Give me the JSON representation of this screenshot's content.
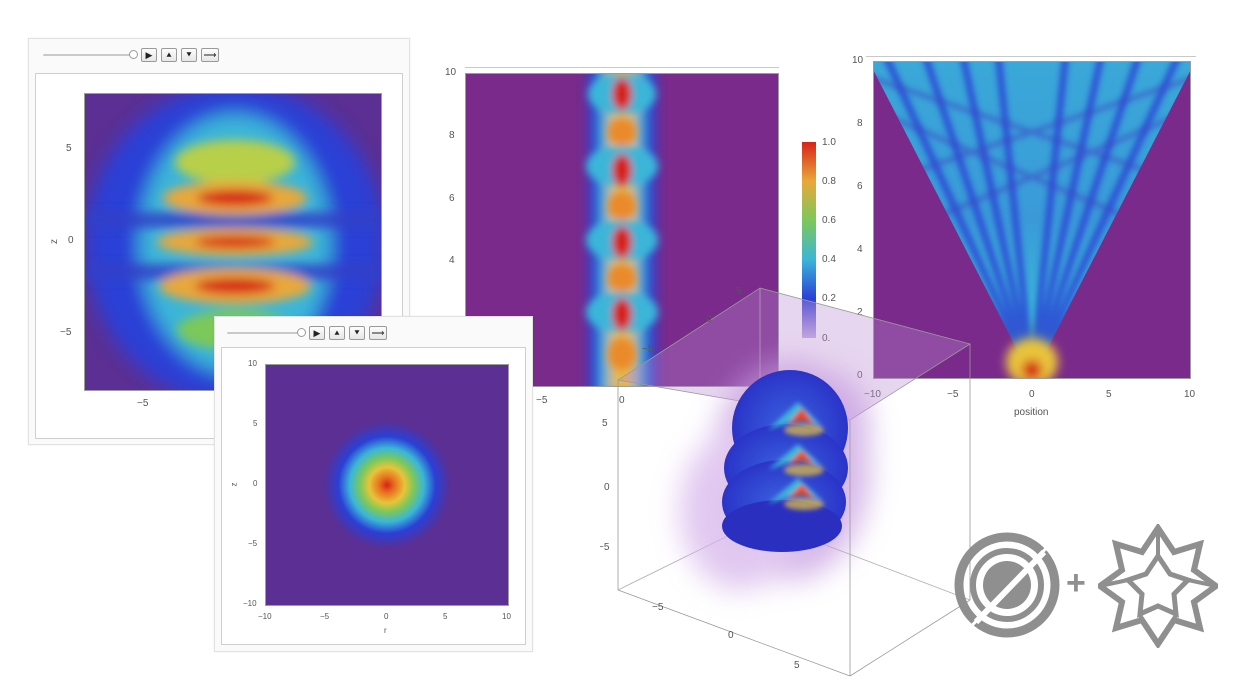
{
  "controls": {
    "play_label": "▶",
    "faster_label": "⯅",
    "slower_label": "⯆",
    "direction_label": "⟶",
    "slider_value": 1.0
  },
  "colors": {
    "purple": "#7a2a8a",
    "blue": "#2b3fd6",
    "cyan": "#3ab6d8",
    "green": "#7cc85a",
    "yellow": "#e8c43a",
    "orange": "#ea7a2a",
    "red": "#d62418",
    "logo_gray": "#8f8f8f"
  },
  "icons": {
    "logo_left": "aperture-lens-icon",
    "plus": "+",
    "logo_right": "wolfram-spikey-icon"
  },
  "chart_data": [
    {
      "type": "heatmap",
      "ylabel": "z",
      "x_ticks": [
        "−5"
      ],
      "y_ticks": [
        "5",
        "0",
        "−5"
      ],
      "ylim": [
        -8,
        8
      ],
      "features": "horizontal intensity bands, peaks near z = 4, 2, 0 and −2"
    },
    {
      "type": "heatmap",
      "xlabel": "r",
      "ylabel": "z",
      "x_ticks": [
        "−10",
        "−5",
        "0",
        "5",
        "10"
      ],
      "y_ticks": [
        "10",
        "5",
        "0",
        "−5",
        "−10"
      ],
      "xlim": [
        -10,
        10
      ],
      "ylim": [
        -10,
        10
      ],
      "features": "single radial peak centered at r = 0, z = 0"
    },
    {
      "type": "heatmap",
      "x_ticks": [
        "−5",
        "0"
      ],
      "y_ticks": [
        "10",
        "8",
        "6",
        "4"
      ],
      "ylim": [
        0,
        10
      ],
      "features": "vertical column at x = 0 with peaks near y = 2.3, 4.7, 7, 9.4",
      "colorbar": {
        "ticks": [
          "1.0",
          "0.8",
          "0.6",
          "0.4",
          "0.2",
          "0."
        ],
        "range": [
          0,
          1
        ]
      }
    },
    {
      "type": "heatmap",
      "xlabel": "position",
      "x_ticks": [
        "−10",
        "−5",
        "0",
        "5",
        "10"
      ],
      "y_ticks": [
        "10",
        "8",
        "6",
        "4",
        "2",
        "0"
      ],
      "xlim": [
        -10,
        10
      ],
      "ylim": [
        0,
        10
      ],
      "features": "fan-shaped interference pattern emerging from position 0 at the bottom"
    },
    {
      "type": "heatmap",
      "x_ticks": [
        "−5",
        "0",
        "5"
      ],
      "y_ticks": [
        "5",
        "0",
        "−5"
      ],
      "z_ticks": [
        "5",
        "0",
        "−5"
      ],
      "features": "3D density with three stacked lobes inside a translucent cube"
    }
  ]
}
